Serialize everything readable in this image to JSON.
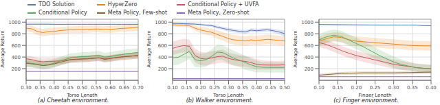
{
  "chart_data": [
    {
      "type": "line",
      "title": "(a) Cheetah environment.",
      "xlabel": "Torso Length",
      "ylabel": "Average Return",
      "grid": true,
      "legend": "upper left",
      "xlim": [
        0.3,
        0.7
      ],
      "ylim": [
        0,
        1050
      ],
      "xticks": [
        {
          "value": 0.3,
          "label": "0.30"
        },
        0.35,
        {
          "value": 0.4,
          "label": "0.40"
        },
        0.45,
        {
          "value": 0.5,
          "label": "0.50"
        },
        0.55,
        {
          "value": 0.6,
          "label": "0.60"
        },
        0.65,
        {
          "value": 0.7,
          "label": "0.70"
        }
      ],
      "yticks": [
        200,
        400,
        600,
        800,
        1000
      ],
      "x": [
        0.3,
        0.32,
        0.34,
        0.36,
        0.38,
        0.4,
        0.42,
        0.44,
        0.46,
        0.48,
        0.5,
        0.52,
        0.54,
        0.56,
        0.58,
        0.6,
        0.62,
        0.64,
        0.66,
        0.68,
        0.7
      ],
      "series": [
        {
          "name": "TDO Solution",
          "color": "#5578b8",
          "values": [
            965,
            965,
            965,
            965,
            965,
            963,
            963,
            963,
            963,
            963,
            963,
            963,
            963,
            963,
            963,
            963,
            963,
            963,
            963,
            963,
            963
          ],
          "std": [
            8,
            8,
            8,
            8,
            8,
            8,
            8,
            8,
            8,
            8,
            8,
            8,
            8,
            8,
            8,
            8,
            8,
            8,
            8,
            8,
            8
          ]
        },
        {
          "name": "HyperZero",
          "color": "#e8851a",
          "values": [
            895,
            885,
            840,
            820,
            838,
            840,
            855,
            862,
            870,
            872,
            872,
            876,
            880,
            882,
            872,
            876,
            882,
            892,
            897,
            902,
            907
          ],
          "std": [
            55,
            58,
            62,
            65,
            65,
            65,
            63,
            62,
            60,
            60,
            60,
            60,
            58,
            58,
            58,
            58,
            58,
            58,
            58,
            58,
            58
          ]
        },
        {
          "name": "Conditional Policy + UVFA",
          "color": "#cc5555",
          "values": [
            370,
            355,
            330,
            318,
            325,
            328,
            332,
            345,
            355,
            358,
            365,
            368,
            378,
            385,
            370,
            378,
            388,
            400,
            408,
            418,
            428
          ],
          "std": [
            55,
            55,
            55,
            55,
            55,
            55,
            55,
            55,
            55,
            55,
            55,
            55,
            55,
            55,
            55,
            55,
            55,
            55,
            55,
            55,
            55
          ]
        },
        {
          "name": "Conditional Policy",
          "color": "#5aaa5a",
          "values": [
            305,
            292,
            278,
            258,
            268,
            295,
            328,
            358,
            388,
            398,
            408,
            410,
            420,
            428,
            398,
            408,
            428,
            440,
            458,
            468,
            478
          ],
          "std": [
            75,
            75,
            75,
            75,
            75,
            75,
            75,
            75,
            75,
            75,
            75,
            75,
            75,
            75,
            75,
            75,
            75,
            75,
            75,
            75,
            75
          ]
        },
        {
          "name": "Meta Policy, Few-shot",
          "color": "#8b6530",
          "values": [
            292,
            282,
            268,
            252,
            262,
            282,
            308,
            332,
            358,
            362,
            368,
            372,
            378,
            388,
            358,
            372,
            392,
            402,
            412,
            418,
            428
          ],
          "std": [
            55,
            55,
            55,
            55,
            55,
            55,
            55,
            55,
            55,
            55,
            55,
            55,
            55,
            55,
            55,
            55,
            55,
            55,
            55,
            55,
            55
          ]
        },
        {
          "name": "Meta Policy, Zero-shot",
          "color": "#9467bd",
          "values": [
            152,
            152,
            152,
            152,
            152,
            152,
            152,
            152,
            152,
            152,
            152,
            152,
            152,
            152,
            152,
            152,
            152,
            152,
            152,
            152,
            152
          ],
          "std": [
            3,
            3,
            3,
            3,
            3,
            3,
            3,
            3,
            3,
            3,
            3,
            3,
            3,
            3,
            3,
            3,
            3,
            3,
            3,
            3,
            3
          ]
        }
      ]
    },
    {
      "type": "line",
      "title": "(b) Walker environment.",
      "xlabel": "Torso Length",
      "ylabel": "Average Return",
      "grid": true,
      "xlim": [
        0.1,
        0.5
      ],
      "ylim": [
        0,
        1050
      ],
      "xticks": [
        {
          "value": 0.1,
          "label": "0.10"
        },
        0.15,
        {
          "value": 0.2,
          "label": "0.20"
        },
        0.25,
        {
          "value": 0.3,
          "label": "0.30"
        },
        0.35,
        {
          "value": 0.4,
          "label": "0.40"
        },
        0.45,
        {
          "value": 0.5,
          "label": "0.50"
        }
      ],
      "yticks": [
        200,
        400,
        600,
        800,
        1000
      ],
      "x": [
        0.1,
        0.12,
        0.14,
        0.16,
        0.18,
        0.2,
        0.22,
        0.24,
        0.26,
        0.28,
        0.3,
        0.32,
        0.34,
        0.36,
        0.38,
        0.4,
        0.42,
        0.44,
        0.46,
        0.48,
        0.5
      ],
      "series": [
        {
          "name": "TDO Solution",
          "color": "#5578b8",
          "values": [
            978,
            976,
            973,
            970,
            966,
            958,
            948,
            940,
            912,
            892,
            870,
            855,
            842,
            832,
            862,
            852,
            862,
            868,
            852,
            832,
            802
          ],
          "std": [
            15,
            15,
            15,
            15,
            18,
            18,
            20,
            22,
            25,
            28,
            32,
            32,
            32,
            32,
            32,
            32,
            32,
            32,
            32,
            35,
            55
          ]
        },
        {
          "name": "HyperZero",
          "color": "#e8851a",
          "values": [
            955,
            950,
            945,
            940,
            895,
            865,
            845,
            825,
            785,
            755,
            715,
            695,
            685,
            675,
            695,
            685,
            695,
            705,
            695,
            685,
            675
          ],
          "std": [
            28,
            28,
            30,
            32,
            42,
            52,
            62,
            62,
            72,
            72,
            82,
            82,
            82,
            82,
            82,
            82,
            82,
            82,
            82,
            82,
            82
          ]
        },
        {
          "name": "Conditional Policy + UVFA",
          "color": "#cc5555",
          "values": [
            548,
            578,
            598,
            585,
            428,
            375,
            365,
            385,
            405,
            415,
            375,
            355,
            335,
            325,
            305,
            275,
            265,
            262,
            262,
            262,
            268
          ],
          "std": [
            115,
            115,
            115,
            115,
            115,
            115,
            112,
            112,
            112,
            112,
            98,
            98,
            95,
            92,
            92,
            88,
            78,
            75,
            72,
            72,
            72
          ]
        },
        {
          "name": "Conditional Policy",
          "color": "#5aaa5a",
          "values": [
            385,
            395,
            445,
            495,
            355,
            335,
            355,
            415,
            485,
            475,
            425,
            375,
            345,
            305,
            265,
            235,
            225,
            222,
            222,
            222,
            222
          ],
          "std": [
            128,
            128,
            128,
            128,
            128,
            118,
            118,
            118,
            128,
            128,
            128,
            128,
            118,
            118,
            108,
            98,
            88,
            88,
            88,
            88,
            88
          ]
        },
        {
          "name": "Meta Policy, Few-shot",
          "color": "#8b6530",
          "values": [
            28,
            28,
            28,
            28,
            28,
            28,
            28,
            28,
            28,
            28,
            28,
            28,
            28,
            28,
            28,
            28,
            28,
            28,
            28,
            28,
            28
          ],
          "std": [
            4,
            4,
            4,
            4,
            4,
            4,
            4,
            4,
            4,
            4,
            4,
            4,
            4,
            4,
            4,
            4,
            4,
            4,
            4,
            4,
            4
          ]
        },
        {
          "name": "Meta Policy, Zero-shot",
          "color": "#9467bd",
          "values": [
            28,
            28,
            28,
            28,
            28,
            28,
            28,
            28,
            28,
            28,
            28,
            28,
            28,
            28,
            28,
            28,
            28,
            28,
            28,
            28,
            28
          ],
          "std": [
            4,
            4,
            4,
            4,
            4,
            4,
            4,
            4,
            4,
            4,
            4,
            4,
            4,
            4,
            4,
            4,
            4,
            4,
            4,
            4,
            4
          ]
        }
      ]
    },
    {
      "type": "line",
      "title": "(c) Finger environment.",
      "xlabel": "Finger Length",
      "ylabel": "Average Return",
      "grid": true,
      "xlim": [
        0.1,
        0.4
      ],
      "ylim": [
        0,
        1050
      ],
      "xticks": [
        {
          "value": 0.1,
          "label": "0.10"
        },
        0.15,
        {
          "value": 0.2,
          "label": "0.20"
        },
        0.25,
        {
          "value": 0.3,
          "label": "0.30"
        },
        0.35,
        {
          "value": 0.4,
          "label": "0.40"
        }
      ],
      "yticks": [
        200,
        400,
        600,
        800,
        1000
      ],
      "x": [
        0.1,
        0.12,
        0.14,
        0.16,
        0.18,
        0.2,
        0.22,
        0.24,
        0.26,
        0.28,
        0.3,
        0.32,
        0.34,
        0.36,
        0.38,
        0.4
      ],
      "series": [
        {
          "name": "TDO Solution",
          "color": "#5578b8",
          "values": [
            960,
            958,
            956,
            955,
            954,
            953,
            952,
            951,
            950,
            950,
            950,
            950,
            950,
            950,
            940,
            938
          ],
          "std": [
            8,
            8,
            8,
            8,
            8,
            8,
            8,
            8,
            8,
            8,
            8,
            8,
            8,
            8,
            8,
            8
          ]
        },
        {
          "name": "HyperZero",
          "color": "#e8851a",
          "values": [
            672,
            715,
            748,
            735,
            698,
            672,
            662,
            652,
            642,
            632,
            622,
            612,
            602,
            595,
            592,
            592
          ],
          "std": [
            82,
            82,
            82,
            82,
            82,
            82,
            82,
            82,
            82,
            82,
            82,
            82,
            82,
            82,
            82,
            82
          ]
        },
        {
          "name": "Conditional Policy + UVFA",
          "color": "#cc5555",
          "values": [
            648,
            615,
            565,
            512,
            465,
            425,
            395,
            365,
            335,
            305,
            275,
            255,
            238,
            218,
            208,
            198
          ],
          "std": [
            78,
            78,
            78,
            78,
            78,
            78,
            78,
            78,
            78,
            78,
            78,
            78,
            68,
            68,
            68,
            68
          ]
        },
        {
          "name": "Conditional Policy",
          "color": "#5aaa5a",
          "values": [
            695,
            748,
            775,
            752,
            692,
            632,
            572,
            502,
            432,
            372,
            315,
            272,
            245,
            218,
            205,
            198
          ],
          "std": [
            98,
            98,
            98,
            98,
            98,
            98,
            98,
            98,
            98,
            98,
            98,
            88,
            78,
            68,
            68,
            68
          ]
        },
        {
          "name": "Meta Policy, Few-shot",
          "color": "#8b6530",
          "values": [
            88,
            98,
            108,
            118,
            122,
            125,
            128,
            128,
            128,
            128,
            128,
            130,
            132,
            135,
            138,
            140
          ],
          "std": [
            28,
            28,
            28,
            28,
            28,
            28,
            28,
            28,
            28,
            28,
            28,
            28,
            28,
            28,
            28,
            28
          ]
        },
        {
          "name": "Meta Policy, Zero-shot",
          "color": "#9467bd",
          "values": [
            62,
            62,
            62,
            62,
            62,
            62,
            62,
            62,
            62,
            62,
            62,
            62,
            62,
            62,
            62,
            62
          ],
          "std": [
            4,
            4,
            4,
            4,
            4,
            4,
            4,
            4,
            4,
            4,
            4,
            4,
            4,
            4,
            4,
            4
          ]
        }
      ]
    }
  ]
}
